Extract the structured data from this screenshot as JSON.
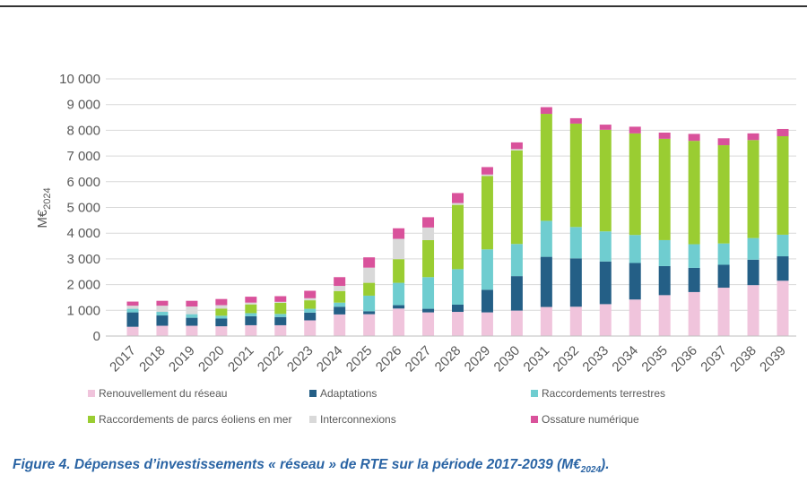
{
  "chart_data": {
    "type": "bar",
    "stacked": true,
    "ylabel": "M€",
    "ylabel_sub": "2024",
    "ylim": [
      0,
      10000
    ],
    "yticks": [
      "0",
      "1 000",
      "2 000",
      "3 000",
      "4 000",
      "5 000",
      "6 000",
      "7 000",
      "8 000",
      "9 000",
      "10 000"
    ],
    "grid": true,
    "legend_position": "bottom",
    "categories": [
      "2017",
      "2018",
      "2019",
      "2020",
      "2021",
      "2022",
      "2023",
      "2024",
      "2025",
      "2026",
      "2027",
      "2028",
      "2029",
      "2030",
      "2031",
      "2032",
      "2033",
      "2034",
      "2035",
      "2036",
      "2037",
      "2038",
      "2039"
    ],
    "series": [
      {
        "name": "Renouvellement du réseau",
        "color": "#f0c4dc",
        "values": [
          360,
          400,
          400,
          380,
          420,
          420,
          610,
          840,
          850,
          1070,
          920,
          940,
          920,
          990,
          1130,
          1140,
          1240,
          1420,
          1590,
          1710,
          1880,
          1980,
          2150
        ]
      },
      {
        "name": "Adaptations",
        "color": "#245f86",
        "values": [
          560,
          400,
          310,
          300,
          350,
          320,
          300,
          300,
          115,
          130,
          140,
          280,
          880,
          1340,
          1950,
          1880,
          1660,
          1420,
          1130,
          940,
          890,
          990,
          950
        ]
      },
      {
        "name": "Raccordements terrestres",
        "color": "#6fcdd0",
        "values": [
          140,
          140,
          140,
          110,
          120,
          120,
          150,
          160,
          605,
          870,
          1230,
          1380,
          1570,
          1250,
          1400,
          1220,
          1170,
          1090,
          1010,
          920,
          830,
          840,
          840
        ]
      },
      {
        "name": "Raccordements de parcs éoliens en mer",
        "color": "#9acd32",
        "values": [
          0,
          0,
          0,
          280,
          340,
          430,
          330,
          450,
          500,
          920,
          1440,
          2500,
          2850,
          3640,
          4160,
          4020,
          3950,
          3950,
          3940,
          4020,
          3820,
          3810,
          3830
        ]
      },
      {
        "name": "Interconnexions",
        "color": "#d9d9d9",
        "values": [
          120,
          240,
          300,
          130,
          70,
          40,
          80,
          200,
          590,
          790,
          490,
          70,
          60,
          50,
          0,
          0,
          0,
          0,
          0,
          0,
          0,
          0,
          0
        ]
      },
      {
        "name": "Ossature numérique",
        "color": "#d9529b",
        "values": [
          160,
          190,
          220,
          240,
          230,
          220,
          290,
          340,
          400,
          410,
          400,
          390,
          290,
          260,
          260,
          210,
          200,
          260,
          240,
          270,
          270,
          260,
          280
        ]
      }
    ]
  },
  "caption": {
    "text": "Figure 4. Dépenses d’investissements « réseau » de RTE sur la période 2017-2039 (M€",
    "sub": "2024",
    "end": ")."
  }
}
